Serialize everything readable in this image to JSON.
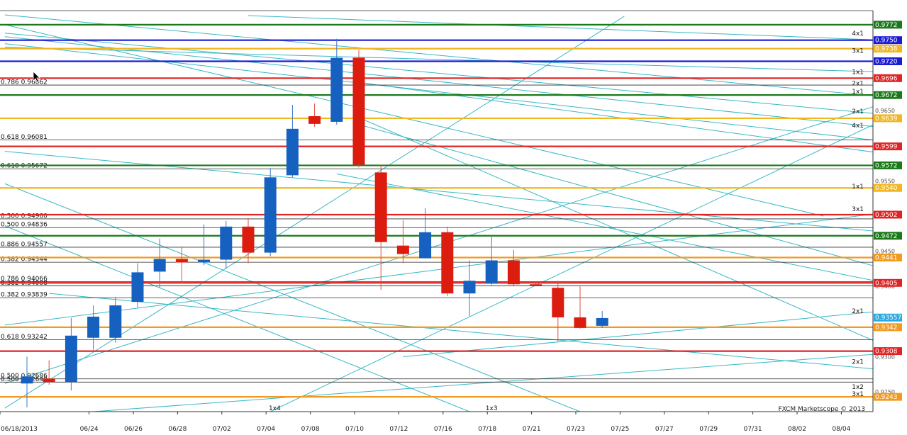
{
  "chart_data": {
    "type": "candlestick",
    "watermark": "FXCM Marketscope © 2013",
    "ylim": [
      0.9222,
      0.9792
    ],
    "x_ticks": [
      "06/18/2013",
      "06/24",
      "06/26",
      "06/28",
      "07/02",
      "07/04",
      "07/08",
      "07/10",
      "07/12",
      "07/16",
      "07/18",
      "07/21",
      "07/23",
      "07/25",
      "07/27",
      "07/29",
      "07/31",
      "08/02",
      "08/04"
    ],
    "x_tick_slots": [
      0,
      3,
      5,
      7,
      9,
      11,
      13,
      15,
      17,
      19,
      21,
      23,
      25,
      27,
      29,
      31,
      33,
      35,
      37
    ],
    "y_axis_labels": [
      "0.9650",
      "0.9550",
      "0.9450",
      "0.9400",
      "0.9300",
      "0.9250"
    ],
    "y_axis_values": [
      0.965,
      0.955,
      0.945,
      0.94,
      0.93,
      0.925
    ],
    "candles": [
      {
        "slot": 0.0,
        "open": 0.9262,
        "high": 0.93,
        "low": 0.9228,
        "close": 0.9272
      },
      {
        "slot": 1.0,
        "open": 0.9269,
        "high": 0.9295,
        "low": 0.926,
        "close": 0.9264
      },
      {
        "slot": 2.0,
        "open": 0.9264,
        "high": 0.9355,
        "low": 0.9252,
        "close": 0.933
      },
      {
        "slot": 3.0,
        "open": 0.9327,
        "high": 0.9373,
        "low": 0.931,
        "close": 0.9357
      },
      {
        "slot": 4.0,
        "open": 0.9327,
        "high": 0.9385,
        "low": 0.932,
        "close": 0.9373
      },
      {
        "slot": 5.0,
        "open": 0.9378,
        "high": 0.9433,
        "low": 0.937,
        "close": 0.942
      },
      {
        "slot": 6.0,
        "open": 0.9421,
        "high": 0.9468,
        "low": 0.9398,
        "close": 0.9439
      },
      {
        "slot": 7.0,
        "open": 0.9439,
        "high": 0.9455,
        "low": 0.9404,
        "close": 0.9434
      },
      {
        "slot": 8.0,
        "open": 0.9434,
        "high": 0.9488,
        "low": 0.943,
        "close": 0.9438
      },
      {
        "slot": 9.0,
        "open": 0.9438,
        "high": 0.9493,
        "low": 0.9425,
        "close": 0.9485
      },
      {
        "slot": 10.0,
        "open": 0.9485,
        "high": 0.9497,
        "low": 0.9433,
        "close": 0.9448
      },
      {
        "slot": 11.0,
        "open": 0.9448,
        "high": 0.9568,
        "low": 0.9443,
        "close": 0.9555
      },
      {
        "slot": 12.0,
        "open": 0.9558,
        "high": 0.9658,
        "low": 0.9555,
        "close": 0.9624
      },
      {
        "slot": 13.0,
        "open": 0.9642,
        "high": 0.966,
        "low": 0.9627,
        "close": 0.9631
      },
      {
        "slot": 14.0,
        "open": 0.9634,
        "high": 0.9752,
        "low": 0.963,
        "close": 0.9725
      },
      {
        "slot": 15.0,
        "open": 0.9725,
        "high": 0.9736,
        "low": 0.9569,
        "close": 0.9573
      },
      {
        "slot": 16.0,
        "open": 0.9562,
        "high": 0.9573,
        "low": 0.9395,
        "close": 0.9463
      },
      {
        "slot": 17.0,
        "open": 0.9458,
        "high": 0.9494,
        "low": 0.9433,
        "close": 0.9446
      },
      {
        "slot": 18.0,
        "open": 0.944,
        "high": 0.9511,
        "low": 0.944,
        "close": 0.9477
      },
      {
        "slot": 19.0,
        "open": 0.9477,
        "high": 0.9485,
        "low": 0.9386,
        "close": 0.939
      },
      {
        "slot": 20.0,
        "open": 0.939,
        "high": 0.9437,
        "low": 0.9358,
        "close": 0.9408
      },
      {
        "slot": 21.0,
        "open": 0.9404,
        "high": 0.9472,
        "low": 0.9402,
        "close": 0.9437
      },
      {
        "slot": 22.0,
        "open": 0.9437,
        "high": 0.9452,
        "low": 0.94,
        "close": 0.9403
      },
      {
        "slot": 23.0,
        "open": 0.9403,
        "high": 0.9405,
        "low": 0.94,
        "close": 0.9402
      },
      {
        "slot": 24.0,
        "open": 0.9398,
        "high": 0.9408,
        "low": 0.9322,
        "close": 0.9356
      },
      {
        "slot": 25.0,
        "open": 0.9356,
        "high": 0.94,
        "low": 0.934,
        "close": 0.9341
      },
      {
        "slot": 26.0,
        "open": 0.9344,
        "high": 0.9365,
        "low": 0.9341,
        "close": 0.9355
      }
    ],
    "horizontal_levels": [
      {
        "price": 0.9772,
        "color": "#1a7a1a",
        "tag": "0.9772"
      },
      {
        "price": 0.975,
        "color": "#1b1bd6",
        "tag": "0.9750"
      },
      {
        "price": 0.9738,
        "color": "#f2b61f",
        "tag": "0.9738"
      },
      {
        "price": 0.972,
        "color": "#1b1bd6",
        "tag": "0.9720"
      },
      {
        "price": 0.9696,
        "color": "#e02424",
        "tag": "0.9696"
      },
      {
        "price": 0.9672,
        "color": "#1a7a1a",
        "tag": "0.9672"
      },
      {
        "price": 0.9639,
        "color": "#f2b61f",
        "tag": "0.9639"
      },
      {
        "price": 0.9599,
        "color": "#e02424",
        "tag": "0.9599"
      },
      {
        "price": 0.9572,
        "color": "#1a7a1a",
        "tag": "0.9572"
      },
      {
        "price": 0.954,
        "color": "#f2b61f",
        "tag": "0.9540"
      },
      {
        "price": 0.9502,
        "color": "#e02424",
        "tag": "0.9502"
      },
      {
        "price": 0.9472,
        "color": "#1a7a1a",
        "tag": "0.9472"
      },
      {
        "price": 0.9441,
        "color": "#f29a1f",
        "tag": "0.9441"
      },
      {
        "price": 0.9405,
        "color": "#e02424",
        "tag": "0.9405"
      },
      {
        "price": 0.9342,
        "color": "#f29a1f",
        "tag": "0.9342"
      },
      {
        "price": 0.9308,
        "color": "#e02424",
        "tag": "0.9308"
      },
      {
        "price": 0.9243,
        "color": "#f29a1f",
        "tag": "0.9243"
      }
    ],
    "current_price": {
      "price": 0.93557,
      "color": "#2aa9e0",
      "tag": "0.93557"
    },
    "fib_levels": [
      {
        "price": 0.96862,
        "label": "0.786 0.96862"
      },
      {
        "price": 0.96081,
        "label": "0.618 0.96081"
      },
      {
        "price": 0.95672,
        "label": "0.618 0.95672"
      },
      {
        "price": 0.9496,
        "label": "0.500 0.94960"
      },
      {
        "price": 0.94836,
        "label": "0.500 0.94836"
      },
      {
        "price": 0.94557,
        "label": "0.886 0.94557"
      },
      {
        "price": 0.94344,
        "label": "0.382 0.94344"
      },
      {
        "price": 0.94066,
        "label": "0.786 0.94066"
      },
      {
        "price": 0.94008,
        "label": "0.382 0.94008"
      },
      {
        "price": 0.93839,
        "label": "0.382 0.93839"
      },
      {
        "price": 0.93242,
        "label": "0.618 0.93242"
      },
      {
        "price": 0.92686,
        "label": "0.500 0.92686"
      },
      {
        "price": 0.9264,
        "label": "0.500 0.92640"
      }
    ],
    "ratio_labels": [
      {
        "price": 0.976,
        "label": "4x1"
      },
      {
        "price": 0.9735,
        "label": "3x1"
      },
      {
        "price": 0.9705,
        "label": "1x1"
      },
      {
        "price": 0.9689,
        "label": "2x1"
      },
      {
        "price": 0.9677,
        "label": "1x1"
      },
      {
        "price": 0.9649,
        "label": "2x1"
      },
      {
        "price": 0.9629,
        "label": "4x1"
      },
      {
        "price": 0.9542,
        "label": "1x1"
      },
      {
        "price": 0.951,
        "label": "3x1"
      },
      {
        "price": 0.9365,
        "label": "2x1"
      },
      {
        "price": 0.9293,
        "label": "2x1"
      },
      {
        "price": 0.9257,
        "label": "1x2"
      },
      {
        "price": 0.9247,
        "label": "3x1"
      }
    ],
    "bottom_ratio_labels": [
      {
        "slot": 11.2,
        "label": "1x4"
      },
      {
        "slot": 21.0,
        "label": "1x3"
      }
    ],
    "gann_lines": [
      {
        "s1": -1,
        "p1": 0.9786,
        "s2": 42,
        "p2": 0.966
      },
      {
        "s1": -1,
        "p1": 0.9755,
        "s2": 42,
        "p2": 0.9615
      },
      {
        "s1": -1,
        "p1": 0.974,
        "s2": 42,
        "p2": 0.9702
      },
      {
        "s1": -1,
        "p1": 0.9745,
        "s2": 42,
        "p2": 0.9595
      },
      {
        "s1": -1,
        "p1": 0.976,
        "s2": 42,
        "p2": 0.9635
      },
      {
        "s1": 10,
        "p1": 0.9785,
        "s2": 42,
        "p2": 0.9746
      },
      {
        "s1": -1,
        "p1": 0.9772,
        "s2": 36,
        "p2": 0.95
      },
      {
        "s1": -1,
        "p1": 0.9592,
        "s2": 42,
        "p2": 0.9468
      },
      {
        "s1": -1,
        "p1": 0.9546,
        "s2": 25,
        "p2": 0.9222
      },
      {
        "s1": -1,
        "p1": 0.9486,
        "s2": 20,
        "p2": 0.9222
      },
      {
        "s1": -1,
        "p1": 0.9227,
        "s2": 27,
        "p2": 0.9784
      },
      {
        "s1": -1,
        "p1": 0.9262,
        "s2": 42,
        "p2": 0.9693
      },
      {
        "s1": -1,
        "p1": 0.9345,
        "s2": 42,
        "p2": 0.9518
      },
      {
        "s1": 1,
        "p1": 0.939,
        "s2": 42,
        "p2": 0.9272
      },
      {
        "s1": 15,
        "p1": 0.964,
        "s2": 42,
        "p2": 0.9272
      },
      {
        "s1": 15,
        "p1": 0.963,
        "s2": 42,
        "p2": 0.9397
      },
      {
        "s1": 15,
        "p1": 0.969,
        "s2": 42,
        "p2": 0.9575
      },
      {
        "s1": 3,
        "p1": 0.9222,
        "s2": 42,
        "p2": 0.9312
      },
      {
        "s1": 17,
        "p1": 0.93,
        "s2": 42,
        "p2": 0.9375
      },
      {
        "s1": 11,
        "p1": 0.9222,
        "s2": 42,
        "p2": 0.9686
      },
      {
        "s1": 14,
        "p1": 0.956,
        "s2": 42,
        "p2": 0.9385
      }
    ]
  }
}
